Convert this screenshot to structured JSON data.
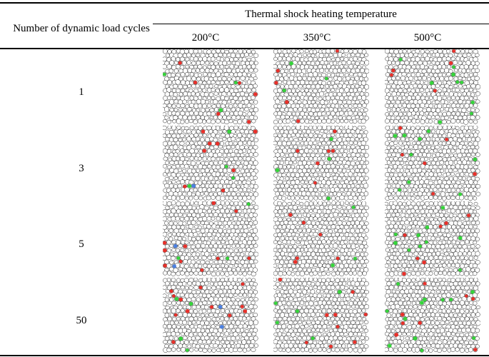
{
  "table": {
    "group_header": "Thermal shock heating temperature",
    "row_header": "Number of dynamic load cycles",
    "columns": [
      "200°C",
      "350°C",
      "500°C"
    ],
    "rows": [
      "1",
      "3",
      "5",
      "50"
    ]
  },
  "colors": {
    "grain_stroke": "#222222",
    "red_marker": "#e8302a",
    "green_marker": "#35d43a",
    "blue_marker": "#4a7fe0"
  },
  "images": {
    "kind": "particle-packing-simulation",
    "markers": [
      [
        {
          "red": 6,
          "green": 3,
          "blue": 0
        },
        {
          "red": 5,
          "green": 3,
          "blue": 0
        },
        {
          "red": 5,
          "green": 9,
          "blue": 0
        }
      ],
      [
        {
          "red": 8,
          "green": 4,
          "blue": 1
        },
        {
          "red": 6,
          "green": 4,
          "blue": 0
        },
        {
          "red": 6,
          "green": 9,
          "blue": 0
        }
      ],
      [
        {
          "red": 10,
          "green": 3,
          "blue": 2
        },
        {
          "red": 6,
          "green": 3,
          "blue": 0
        },
        {
          "red": 7,
          "green": 10,
          "blue": 0
        }
      ],
      [
        {
          "red": 12,
          "green": 4,
          "blue": 2
        },
        {
          "red": 9,
          "green": 5,
          "blue": 0
        },
        {
          "red": 8,
          "green": 12,
          "blue": 0
        }
      ]
    ]
  }
}
